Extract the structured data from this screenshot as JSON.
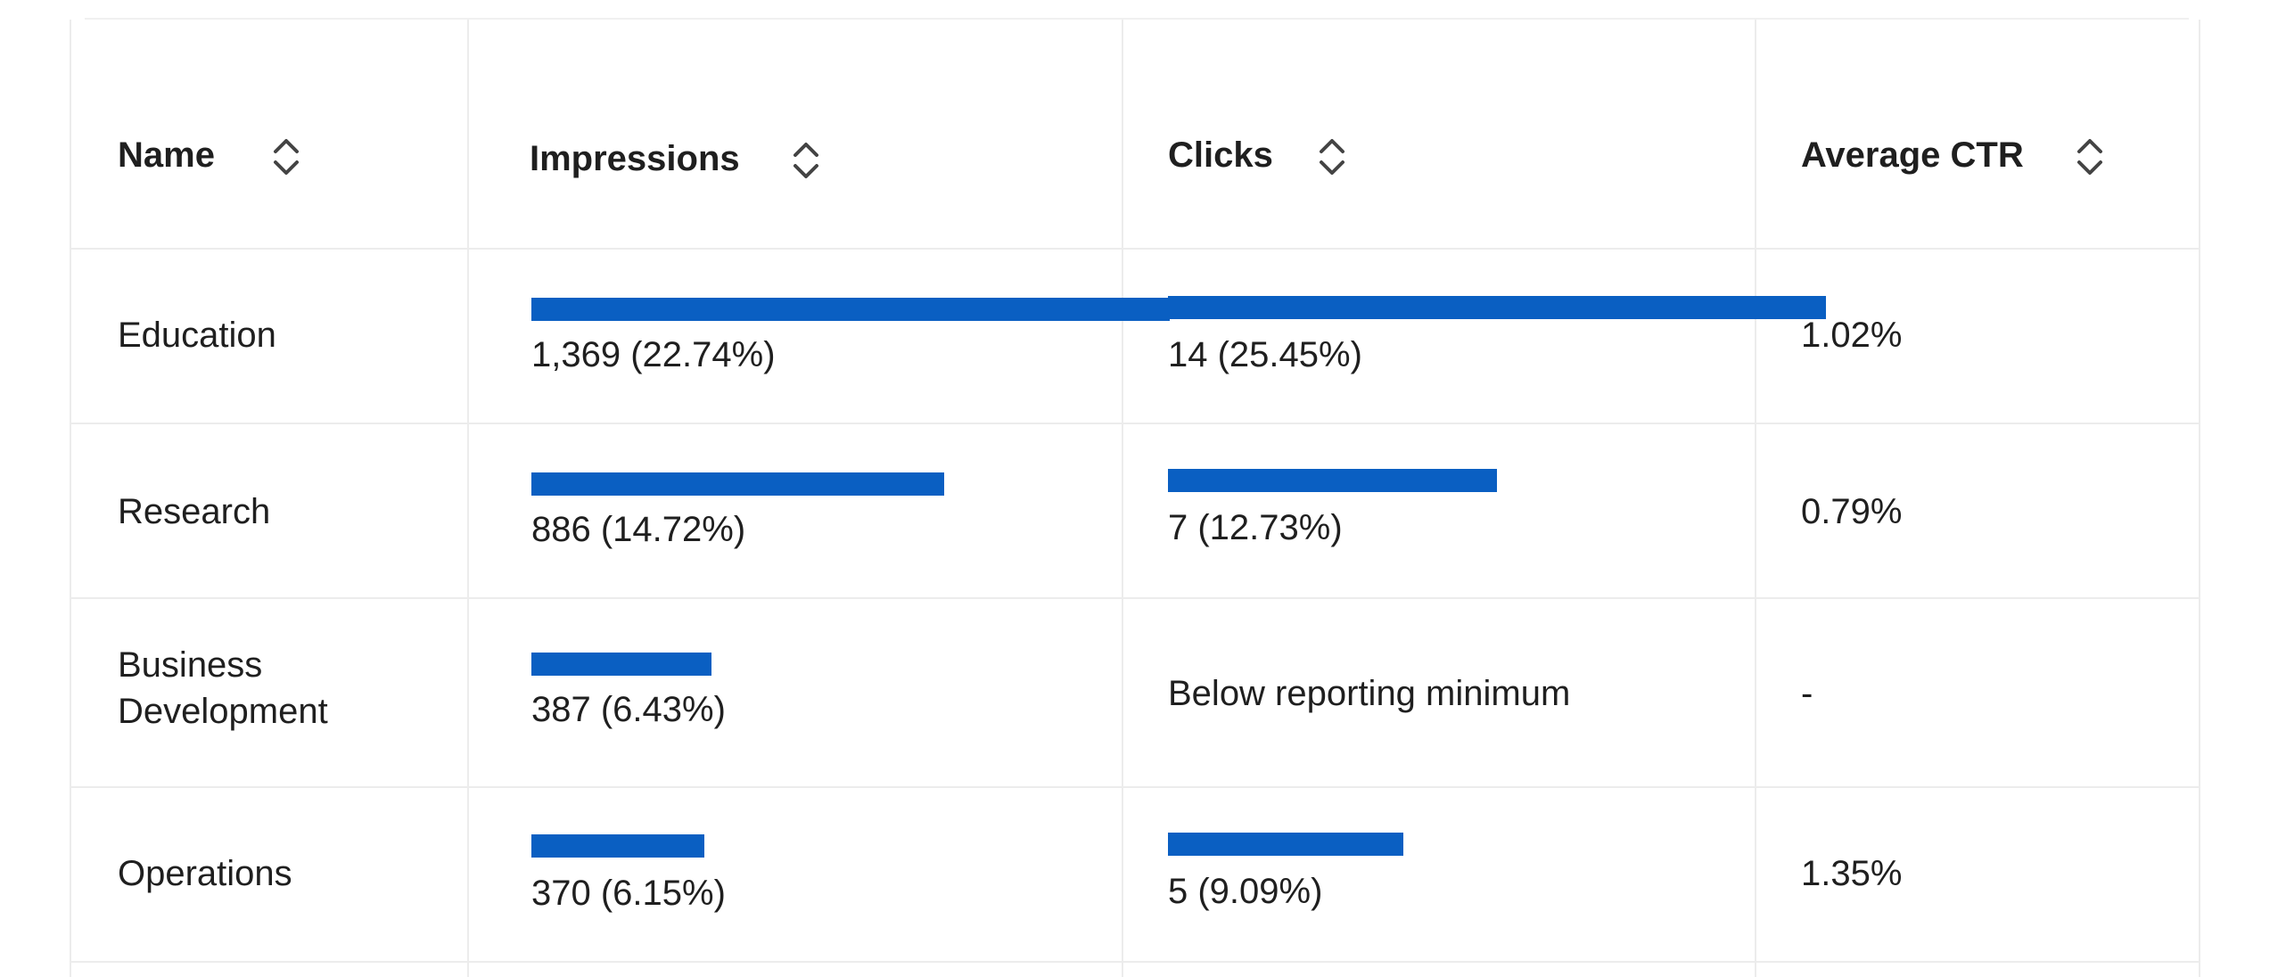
{
  "columns": [
    {
      "label": "Name",
      "icon": "sort-icon"
    },
    {
      "label": "Impressions",
      "icon": "sort-icon"
    },
    {
      "label": "Clicks",
      "icon": "sort-icon"
    },
    {
      "label": "Average CTR",
      "icon": "sort-icon"
    }
  ],
  "accent_color": "#0a5fc2",
  "rows": [
    {
      "name": "Education",
      "impressions": {
        "text": "1,369 (22.74%)",
        "share": 22.74
      },
      "clicks": {
        "text": "14 (25.45%)",
        "share": 25.45
      },
      "ctr": "1.02%"
    },
    {
      "name": "Research",
      "impressions": {
        "text": "886 (14.72%)",
        "share": 14.72
      },
      "clicks": {
        "text": "7 (12.73%)",
        "share": 12.73
      },
      "ctr": "0.79%"
    },
    {
      "name_line1": "Business",
      "name_line2": "Development",
      "impressions": {
        "text": "387 (6.43%)",
        "share": 6.43
      },
      "clicks": {
        "text": "Below reporting minimum"
      },
      "ctr": "-"
    },
    {
      "name": "Operations",
      "impressions": {
        "text": "370 (6.15%)",
        "share": 6.15
      },
      "clicks": {
        "text": "5 (9.09%)",
        "share": 9.09
      },
      "ctr": "1.35%"
    }
  ]
}
